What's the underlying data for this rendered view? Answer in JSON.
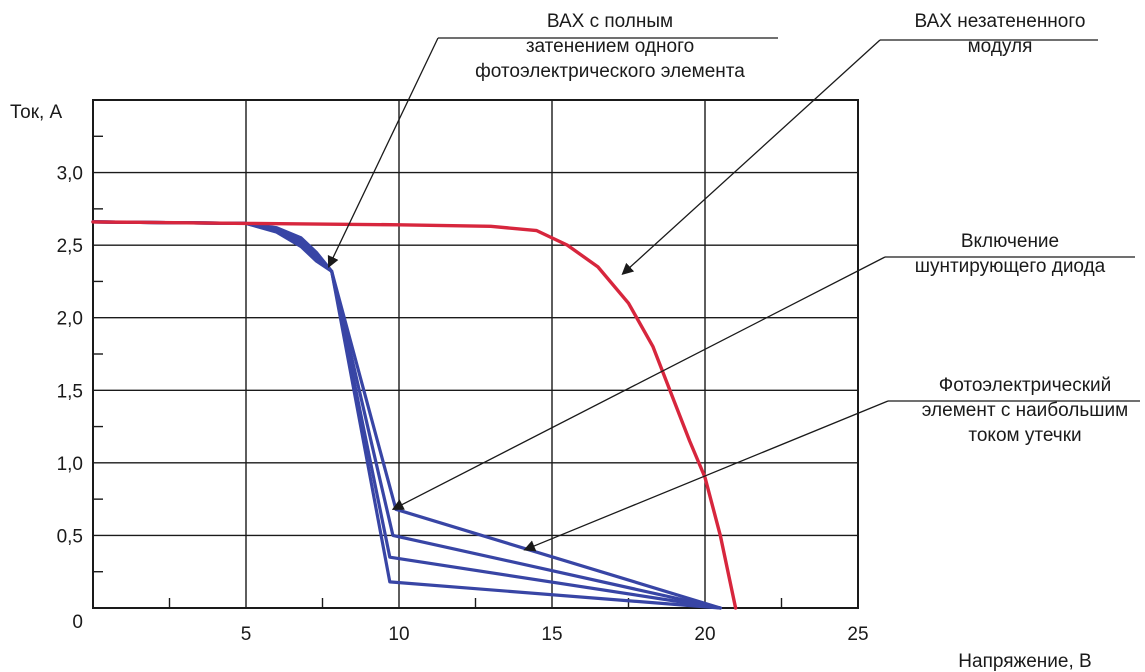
{
  "chart_data": {
    "type": "line",
    "xlabel": "Напряжение, В",
    "ylabel": "Ток, А",
    "xlim": [
      0,
      25
    ],
    "ylim": [
      0,
      3.5
    ],
    "grid": true,
    "x_ticks": [
      {
        "value": 5,
        "label": "5"
      },
      {
        "value": 10,
        "label": "10"
      },
      {
        "value": 15,
        "label": "15"
      },
      {
        "value": 20,
        "label": "20"
      },
      {
        "value": 25,
        "label": "25"
      }
    ],
    "y_ticks": [
      {
        "value": 0,
        "label": "0"
      },
      {
        "value": 0.5,
        "label": "0,5"
      },
      {
        "value": 1.0,
        "label": "1,0"
      },
      {
        "value": 1.5,
        "label": "1,5"
      },
      {
        "value": 2.0,
        "label": "2,0"
      },
      {
        "value": 2.5,
        "label": "2,5"
      },
      {
        "value": 3.0,
        "label": "3,0"
      }
    ],
    "colors": {
      "unshaded": "#d7263d",
      "shaded": "#3845a5",
      "grid": "#1a1a1a"
    },
    "series": [
      {
        "color": "#d7263d",
        "x": [
          0,
          5,
          10,
          13,
          14.5,
          15.5,
          16.5,
          17.5,
          18.3,
          19,
          19.5,
          20,
          20.5,
          21
        ],
        "y": [
          2.66,
          2.65,
          2.64,
          2.63,
          2.6,
          2.5,
          2.35,
          2.1,
          1.8,
          1.42,
          1.15,
          0.9,
          0.5,
          0
        ]
      },
      {
        "color": "#3845a5",
        "x": [
          0,
          5,
          6,
          6.8,
          7.3,
          7.8,
          9.9,
          20.5
        ],
        "y": [
          2.66,
          2.65,
          2.62,
          2.55,
          2.45,
          2.32,
          0.68,
          0
        ]
      },
      {
        "color": "#3845a5",
        "x": [
          0,
          5,
          6,
          6.8,
          7.3,
          7.8,
          9.8,
          20.5
        ],
        "y": [
          2.66,
          2.65,
          2.61,
          2.53,
          2.43,
          2.32,
          0.5,
          0
        ]
      },
      {
        "color": "#3845a5",
        "x": [
          0,
          5,
          6,
          6.8,
          7.3,
          7.8,
          9.7,
          20.5
        ],
        "y": [
          2.66,
          2.65,
          2.6,
          2.51,
          2.41,
          2.32,
          0.35,
          0
        ]
      },
      {
        "color": "#3845a5",
        "x": [
          0,
          5,
          6,
          6.8,
          7.3,
          7.8,
          9.7,
          20.5
        ],
        "y": [
          2.66,
          2.65,
          2.59,
          2.49,
          2.39,
          2.32,
          0.18,
          0
        ]
      }
    ],
    "annotations": [
      {
        "lines": [
          "ВАХ с полным",
          "затенением одного",
          "фотоэлектрического элемента"
        ],
        "target": [
          7.7,
          2.35
        ]
      },
      {
        "lines": [
          "ВАХ незатененного",
          "модуля"
        ],
        "target": [
          17.3,
          2.3
        ]
      },
      {
        "lines": [
          "Включение",
          "шунтирующего диода"
        ],
        "target": [
          9.8,
          0.68
        ]
      },
      {
        "lines": [
          "Фотоэлектрический",
          "элемент с наибольшим",
          "током утечки"
        ],
        "target": [
          14.1,
          0.4
        ]
      }
    ]
  }
}
